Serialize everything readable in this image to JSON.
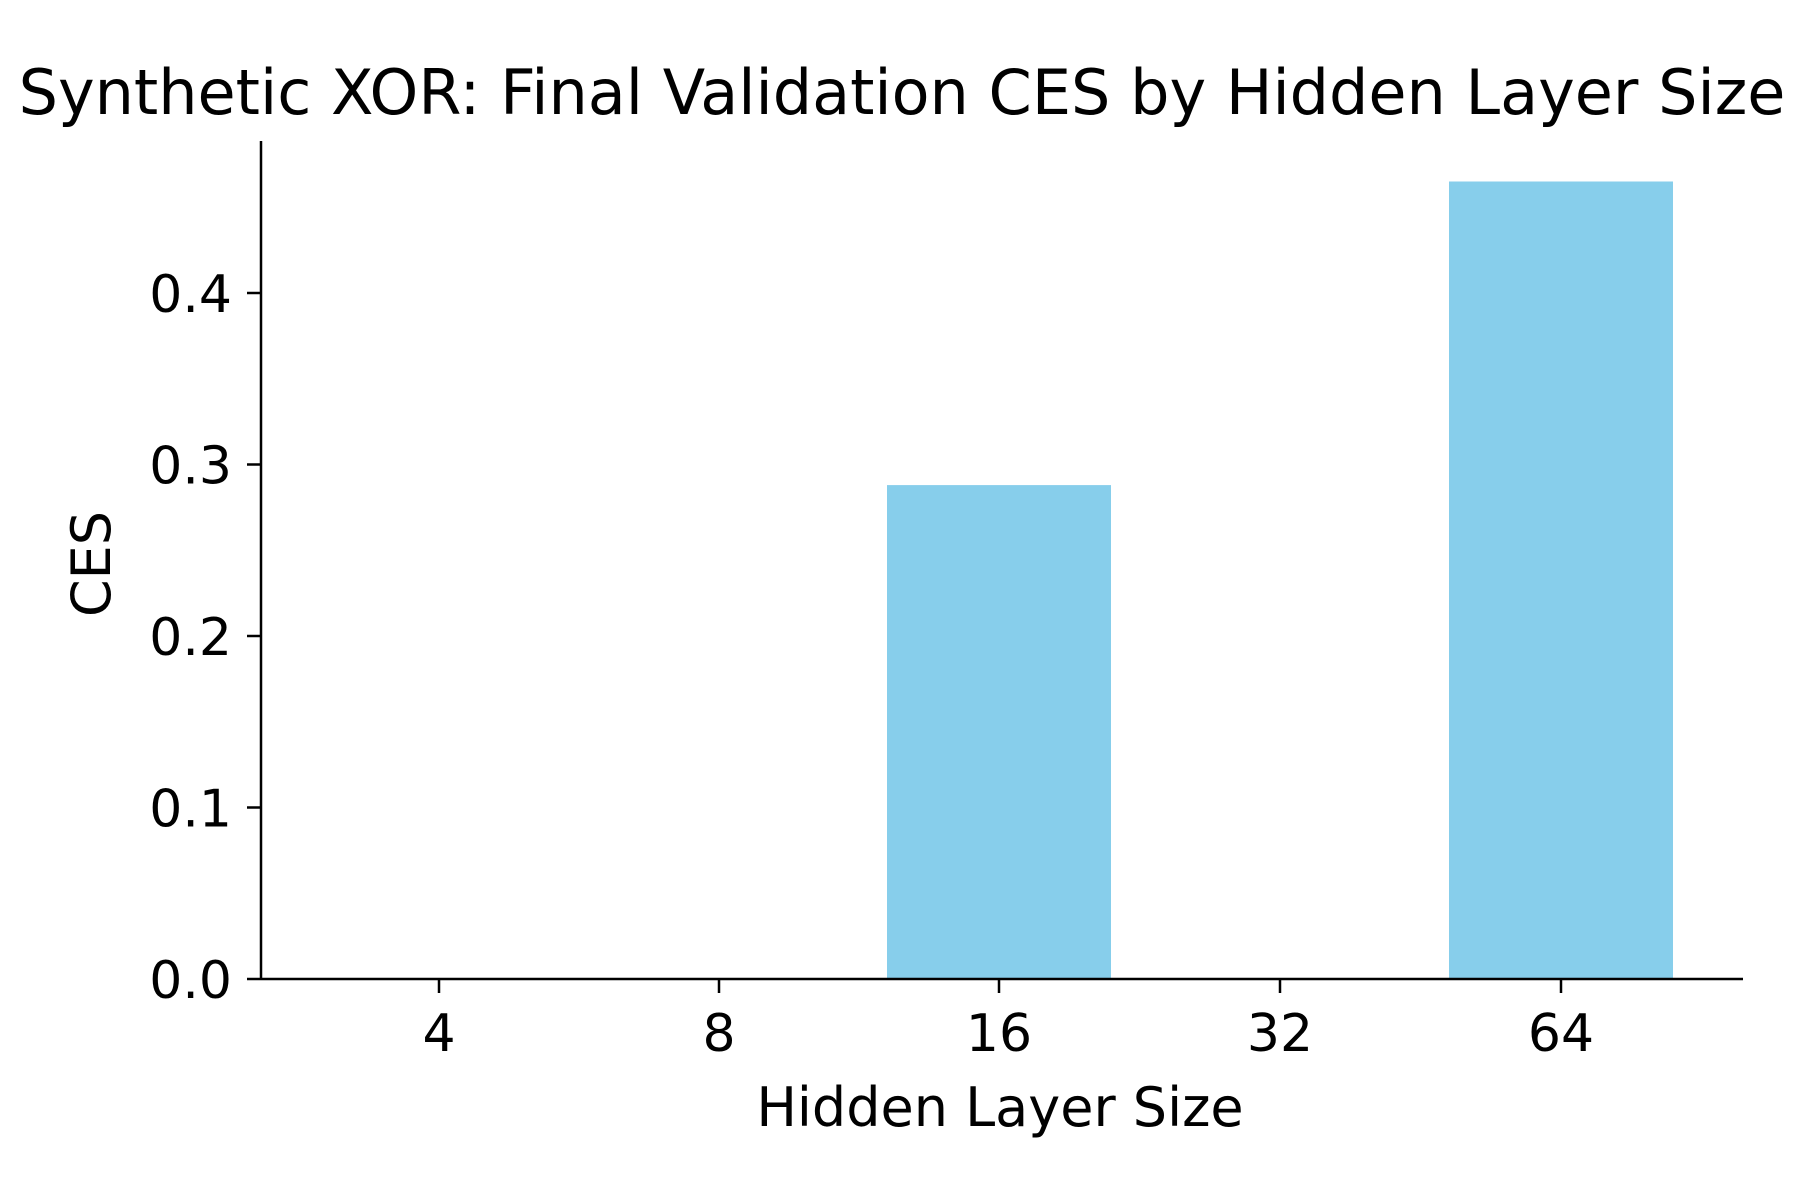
{
  "chart_data": {
    "type": "bar",
    "title": "Synthetic XOR: Final Validation CES by Hidden Layer Size",
    "xlabel": "Hidden Layer Size",
    "ylabel": "CES",
    "categories": [
      "4",
      "8",
      "16",
      "32",
      "64"
    ],
    "values": [
      0.0,
      0.0,
      0.288,
      0.0,
      0.465
    ],
    "ylim": [
      0,
      0.49
    ],
    "yticks": [
      0.0,
      0.1,
      0.2,
      0.3,
      0.4
    ],
    "ytick_labels": [
      "0.0",
      "0.1",
      "0.2",
      "0.3",
      "0.4"
    ],
    "bar_color": "#87CEEB",
    "grid": false,
    "legend": false
  }
}
